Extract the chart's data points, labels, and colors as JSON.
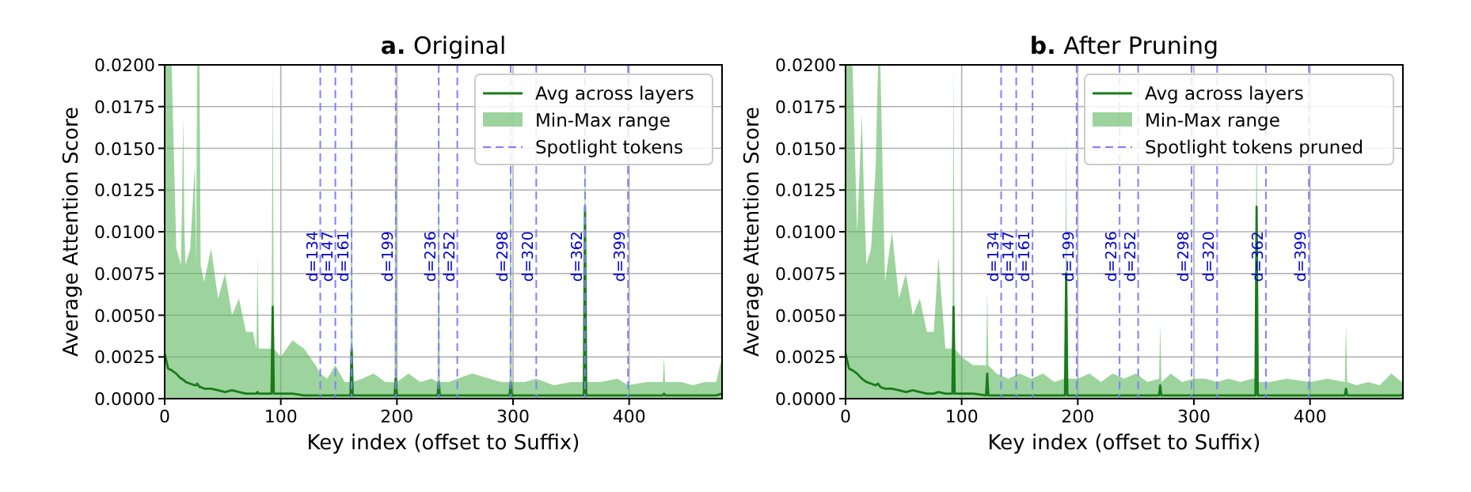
{
  "chart_data": [
    {
      "type": "area",
      "title": "a. Original",
      "xlabel": "Key index (offset to Suffix)",
      "ylabel": "Average Attention Score",
      "xlim": [
        0,
        480
      ],
      "xticks": [
        0,
        100,
        200,
        300,
        400
      ],
      "ylim": [
        0,
        0.02
      ],
      "yticks": [
        {
          "value": 0,
          "label": "0.0000"
        },
        {
          "value": 0.0025,
          "label": "0.0025"
        },
        {
          "value": 0.005,
          "label": "0.0050"
        },
        {
          "value": 0.0075,
          "label": "0.0075"
        },
        {
          "value": 0.01,
          "label": "0.0100"
        },
        {
          "value": 0.0125,
          "label": "0.0125"
        },
        {
          "value": 0.015,
          "label": "0.0150"
        },
        {
          "value": 0.0175,
          "label": "0.0175"
        },
        {
          "value": 0.02,
          "label": "0.0200"
        }
      ],
      "grid": true,
      "legend": "top right",
      "annotations": [
        "Spotlight tokens"
      ],
      "x": [
        0,
        3,
        6,
        10,
        14,
        15,
        16,
        17,
        18,
        22,
        26,
        27,
        28,
        29,
        30,
        31,
        34,
        40,
        46,
        52,
        58,
        64,
        70,
        76,
        79,
        80,
        81,
        86,
        92,
        93,
        94,
        100,
        110,
        120,
        130,
        134,
        140,
        147,
        155,
        160,
        161,
        162,
        170,
        180,
        190,
        198,
        199,
        200,
        210,
        220,
        230,
        235,
        236,
        237,
        245,
        252,
        265,
        280,
        290,
        297,
        298,
        299,
        310,
        320,
        335,
        350,
        361,
        362,
        363,
        375,
        390,
        399,
        415,
        429,
        430,
        431,
        445,
        455,
        465,
        475,
        480
      ],
      "series": [
        {
          "type": "area",
          "name": "Min-Max range",
          "color": "#5cb85c",
          "values": [
            0.02,
            0.02,
            0.02,
            0.009,
            0.008,
            0.012,
            0.017,
            0.01,
            0.008,
            0.009,
            0.014,
            0.008,
            0.02,
            0.02,
            0.02,
            0.008,
            0.007,
            0.009,
            0.006,
            0.0075,
            0.005,
            0.006,
            0.004,
            0.004,
            0.003,
            0.0085,
            0.003,
            0.003,
            0.003,
            0.02,
            0.003,
            0.0025,
            0.0035,
            0.003,
            0.002,
            0.0015,
            0.0012,
            0.002,
            0.001,
            0.001,
            0.02,
            0.001,
            0.0012,
            0.0015,
            0.001,
            0.001,
            0.02,
            0.001,
            0.0015,
            0.001,
            0.0012,
            0.001,
            0.02,
            0.001,
            0.001,
            0.0012,
            0.0015,
            0.0012,
            0.001,
            0.001,
            0.02,
            0.001,
            0.001,
            0.0012,
            0.0008,
            0.001,
            0.001,
            0.02,
            0.001,
            0.001,
            0.0012,
            0.0008,
            0.001,
            0.001,
            0.0025,
            0.001,
            0.001,
            0.0008,
            0.001,
            0.001,
            0.0025
          ]
        },
        {
          "type": "line",
          "name": "Avg across layers",
          "color": "#1a7a1a",
          "values": [
            0.0027,
            0.0018,
            0.0017,
            0.0015,
            0.0012,
            0.0012,
            0.0011,
            0.0011,
            0.001,
            0.0009,
            0.0008,
            0.0008,
            0.0009,
            0.0008,
            0.0007,
            0.0007,
            0.0006,
            0.0006,
            0.0005,
            0.0004,
            0.0005,
            0.0004,
            0.0003,
            0.0003,
            0.0003,
            0.0004,
            0.0003,
            0.0003,
            0.0003,
            0.0055,
            0.0003,
            0.0003,
            0.0003,
            0.0002,
            0.0002,
            0.0002,
            0.0002,
            0.0002,
            0.0002,
            0.0002,
            0.003,
            0.0002,
            0.0002,
            0.0002,
            0.0002,
            0.0002,
            0.0012,
            0.0002,
            0.0002,
            0.0002,
            0.0002,
            0.0002,
            0.001,
            0.0002,
            0.0002,
            0.0002,
            0.0002,
            0.0002,
            0.0002,
            0.0002,
            0.001,
            0.0002,
            0.0002,
            0.0002,
            0.0002,
            0.0002,
            0.0002,
            0.0115,
            0.0002,
            0.0002,
            0.0002,
            0.0002,
            0.0002,
            0.0002,
            0.0003,
            0.0002,
            0.0002,
            0.0002,
            0.0002,
            0.0002,
            0.0003
          ]
        }
      ],
      "ref_lines": [
        {
          "axis": "x",
          "value": 134,
          "label": "d=134",
          "color": "#8080ff",
          "line_style": "dashed"
        },
        {
          "axis": "x",
          "value": 147,
          "label": "d=147",
          "color": "#8080ff",
          "line_style": "dashed"
        },
        {
          "axis": "x",
          "value": 161,
          "label": "d=161",
          "color": "#8080ff",
          "line_style": "dashed"
        },
        {
          "axis": "x",
          "value": 199,
          "label": "d=199",
          "color": "#8080ff",
          "line_style": "dashed"
        },
        {
          "axis": "x",
          "value": 236,
          "label": "d=236",
          "color": "#8080ff",
          "line_style": "dashed"
        },
        {
          "axis": "x",
          "value": 252,
          "label": "d=252",
          "color": "#8080ff",
          "line_style": "dashed"
        },
        {
          "axis": "x",
          "value": 298,
          "label": "d=298",
          "color": "#8080ff",
          "line_style": "dashed"
        },
        {
          "axis": "x",
          "value": 320,
          "label": "d=320",
          "color": "#8080ff",
          "line_style": "dashed"
        },
        {
          "axis": "x",
          "value": 362,
          "label": "d=362",
          "color": "#8080ff",
          "line_style": "dashed"
        },
        {
          "axis": "x",
          "value": 399,
          "label": "d=399",
          "color": "#8080ff",
          "line_style": "dashed"
        }
      ]
    },
    {
      "type": "area",
      "title": "b. After Pruning",
      "xlabel": "Key index (offset to Suffix)",
      "ylabel": "Average Attention Score",
      "xlim": [
        0,
        480
      ],
      "xticks": [
        0,
        100,
        200,
        300,
        400
      ],
      "ylim": [
        0,
        0.02
      ],
      "yticks": [
        {
          "value": 0,
          "label": "0.0000"
        },
        {
          "value": 0.0025,
          "label": "0.0025"
        },
        {
          "value": 0.005,
          "label": "0.0050"
        },
        {
          "value": 0.0075,
          "label": "0.0075"
        },
        {
          "value": 0.01,
          "label": "0.0100"
        },
        {
          "value": 0.0125,
          "label": "0.0125"
        },
        {
          "value": 0.015,
          "label": "0.0150"
        },
        {
          "value": 0.0175,
          "label": "0.0175"
        },
        {
          "value": 0.02,
          "label": "0.0200"
        }
      ],
      "grid": true,
      "legend": "top right",
      "annotations": [
        "Spotlight tokens pruned"
      ],
      "x": [
        0,
        3,
        6,
        10,
        14,
        16,
        18,
        22,
        26,
        28,
        30,
        34,
        40,
        46,
        52,
        58,
        64,
        70,
        76,
        80,
        86,
        92,
        93,
        94,
        100,
        110,
        121,
        122,
        123,
        130,
        140,
        150,
        160,
        170,
        180,
        188,
        189,
        190,
        191,
        200,
        210,
        220,
        230,
        240,
        250,
        260,
        270,
        271,
        272,
        280,
        290,
        300,
        310,
        320,
        330,
        340,
        350,
        353,
        354,
        355,
        365,
        380,
        400,
        415,
        430,
        431,
        432,
        440,
        450,
        460,
        470,
        479,
        480
      ],
      "series": [
        {
          "type": "area",
          "name": "Min-Max range",
          "color": "#5cb85c",
          "values": [
            0.02,
            0.02,
            0.02,
            0.01,
            0.017,
            0.012,
            0.008,
            0.009,
            0.014,
            0.02,
            0.02,
            0.007,
            0.01,
            0.006,
            0.0075,
            0.005,
            0.006,
            0.004,
            0.004,
            0.0085,
            0.003,
            0.003,
            0.02,
            0.003,
            0.0025,
            0.002,
            0.002,
            0.0065,
            0.002,
            0.0015,
            0.0012,
            0.0015,
            0.0012,
            0.0015,
            0.001,
            0.0012,
            0.0015,
            0.016,
            0.0012,
            0.0012,
            0.0015,
            0.001,
            0.0015,
            0.0012,
            0.0015,
            0.001,
            0.0012,
            0.0045,
            0.001,
            0.0015,
            0.001,
            0.0012,
            0.0012,
            0.001,
            0.0012,
            0.001,
            0.0012,
            0.0012,
            0.02,
            0.001,
            0.001,
            0.0012,
            0.001,
            0.0012,
            0.001,
            0.0045,
            0.001,
            0.0008,
            0.001,
            0.0008,
            0.0015,
            0.001,
            0.0025
          ]
        },
        {
          "type": "line",
          "name": "Avg across layers",
          "color": "#1a7a1a",
          "values": [
            0.0027,
            0.0018,
            0.0017,
            0.0015,
            0.0012,
            0.0011,
            0.001,
            0.0009,
            0.0008,
            0.0009,
            0.0007,
            0.0006,
            0.0006,
            0.0005,
            0.0004,
            0.0005,
            0.0004,
            0.0003,
            0.0003,
            0.0004,
            0.0003,
            0.0003,
            0.0055,
            0.0003,
            0.0003,
            0.0003,
            0.0002,
            0.0015,
            0.0002,
            0.0002,
            0.0002,
            0.0002,
            0.0002,
            0.0002,
            0.0002,
            0.0002,
            0.0002,
            0.0075,
            0.0002,
            0.0002,
            0.0002,
            0.0002,
            0.0002,
            0.0002,
            0.0002,
            0.0002,
            0.0002,
            0.0008,
            0.0002,
            0.0002,
            0.0002,
            0.0002,
            0.0002,
            0.0002,
            0.0002,
            0.0002,
            0.0002,
            0.0002,
            0.0115,
            0.0002,
            0.0002,
            0.0002,
            0.0002,
            0.0002,
            0.0002,
            0.0006,
            0.0002,
            0.0002,
            0.0002,
            0.0002,
            0.0002,
            0.0002,
            0.0003
          ]
        }
      ],
      "ref_lines": [
        {
          "axis": "x",
          "value": 134,
          "label": "d=134",
          "color": "#8080ff",
          "line_style": "dashed"
        },
        {
          "axis": "x",
          "value": 147,
          "label": "d=147",
          "color": "#8080ff",
          "line_style": "dashed"
        },
        {
          "axis": "x",
          "value": 161,
          "label": "d=161",
          "color": "#8080ff",
          "line_style": "dashed"
        },
        {
          "axis": "x",
          "value": 199,
          "label": "d=199",
          "color": "#8080ff",
          "line_style": "dashed"
        },
        {
          "axis": "x",
          "value": 236,
          "label": "d=236",
          "color": "#8080ff",
          "line_style": "dashed"
        },
        {
          "axis": "x",
          "value": 252,
          "label": "d=252",
          "color": "#8080ff",
          "line_style": "dashed"
        },
        {
          "axis": "x",
          "value": 298,
          "label": "d=298",
          "color": "#8080ff",
          "line_style": "dashed"
        },
        {
          "axis": "x",
          "value": 320,
          "label": "d=320",
          "color": "#8080ff",
          "line_style": "dashed"
        },
        {
          "axis": "x",
          "value": 362,
          "label": "d=362",
          "color": "#8080ff",
          "line_style": "dashed"
        },
        {
          "axis": "x",
          "value": 399,
          "label": "d=399",
          "color": "#8080ff",
          "line_style": "dashed"
        }
      ]
    }
  ]
}
